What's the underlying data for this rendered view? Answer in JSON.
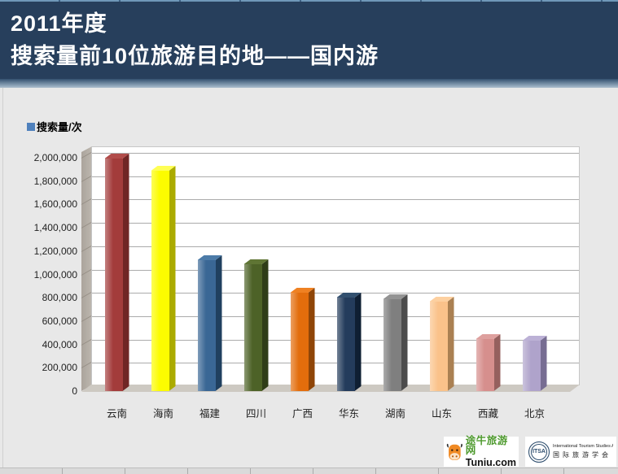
{
  "header": {
    "title_line1": "2011年度",
    "title_line2": "搜索量前10位旅游目的地——国内游"
  },
  "legend": {
    "label": "搜索量/次",
    "swatch_color": "#4F81BD"
  },
  "chart_data": {
    "type": "bar",
    "style": "3d-column",
    "title": "2011年度搜索量前10位旅游目的地——国内游",
    "legend_entries": [
      "搜索量/次"
    ],
    "legend_position": "top-left",
    "categories": [
      "云南",
      "海南",
      "福建",
      "四川",
      "广西",
      "华东",
      "湖南",
      "山东",
      "西藏",
      "北京"
    ],
    "values": [
      1990000,
      1890000,
      1120000,
      1090000,
      845000,
      800000,
      790000,
      770000,
      445000,
      435000
    ],
    "xlabel": "",
    "ylabel": "搜索量/次",
    "ylim": [
      0,
      2000000
    ],
    "ytick_interval": 200000,
    "ytick_labels": [
      "0",
      "200,000",
      "400,000",
      "600,000",
      "800,000",
      "1,000,000",
      "1,200,000",
      "1,400,000",
      "1,600,000",
      "1,800,000",
      "2,000,000"
    ],
    "grid": true,
    "bar_colors": [
      {
        "front": "#A33C3B",
        "side": "#702625",
        "top": "#B14C4A"
      },
      {
        "front": "#FCFC00",
        "side": "#ABAB00",
        "top": "#FFFF55"
      },
      {
        "front": "#3A6795",
        "side": "#20405F",
        "top": "#4C7BA8"
      },
      {
        "front": "#4D6227",
        "side": "#2F3D18",
        "top": "#5F7534"
      },
      {
        "front": "#E36D0C",
        "side": "#8F4507",
        "top": "#EF8122"
      },
      {
        "front": "#243C5C",
        "side": "#0F1F33",
        "top": "#32506F"
      },
      {
        "front": "#7F7F7F",
        "side": "#4C4C4C",
        "top": "#939393"
      },
      {
        "front": "#FAC28A",
        "side": "#AA8052",
        "top": "#FDD0A0"
      },
      {
        "front": "#D68F8D",
        "side": "#95605E",
        "top": "#DEA09E"
      },
      {
        "front": "#AFA3CB",
        "side": "#776D92",
        "top": "#BCB1D6"
      }
    ]
  },
  "footer": {
    "tuniu": {
      "name_cn": "途牛旅游网",
      "name_en": "Tuniu.com"
    },
    "itsa": {
      "abbr": "ITSA",
      "line_en": "International Tourism Studies Association",
      "line_cn": "国际旅游学会"
    }
  }
}
